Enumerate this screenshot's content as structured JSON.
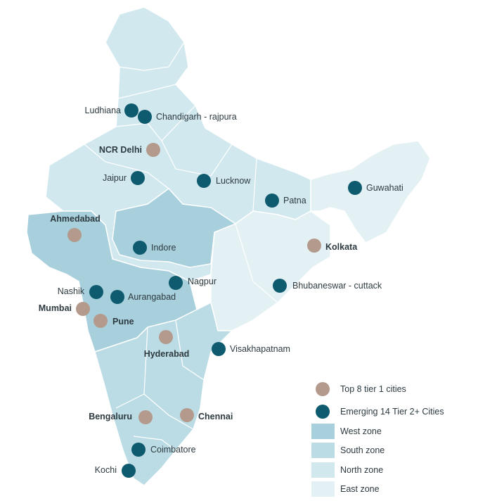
{
  "colors": {
    "tier1": "#b49a8c",
    "tier2": "#0e5a6e",
    "west_zone": "#a8d0dc",
    "south_zone": "#bcdce5",
    "north_zone": "#d2e8ef",
    "east_zone": "#e3f0f4",
    "border": "#ffffff"
  },
  "cities": [
    {
      "name": "Ludhiana",
      "tier": "tier2"
    },
    {
      "name": "Chandigarh - rajpura",
      "tier": "tier2"
    },
    {
      "name": "NCR Delhi",
      "tier": "tier1"
    },
    {
      "name": "Jaipur",
      "tier": "tier2"
    },
    {
      "name": "Lucknow",
      "tier": "tier2"
    },
    {
      "name": "Patna",
      "tier": "tier2"
    },
    {
      "name": "Guwahati",
      "tier": "tier2"
    },
    {
      "name": "Ahmedabad",
      "tier": "tier1"
    },
    {
      "name": "Indore",
      "tier": "tier2"
    },
    {
      "name": "Kolkata",
      "tier": "tier1"
    },
    {
      "name": "Nashik",
      "tier": "tier2"
    },
    {
      "name": "Aurangabad",
      "tier": "tier2"
    },
    {
      "name": "Nagpur",
      "tier": "tier2"
    },
    {
      "name": "Bhubaneswar - cuttack",
      "tier": "tier2"
    },
    {
      "name": "Mumbai",
      "tier": "tier1"
    },
    {
      "name": "Pune",
      "tier": "tier1"
    },
    {
      "name": "Hyderabad",
      "tier": "tier1"
    },
    {
      "name": "Visakhapatnam",
      "tier": "tier2"
    },
    {
      "name": "Bengaluru",
      "tier": "tier1"
    },
    {
      "name": "Chennai",
      "tier": "tier1"
    },
    {
      "name": "Coimbatore",
      "tier": "tier2"
    },
    {
      "name": "Kochi",
      "tier": "tier2"
    }
  ],
  "legend": {
    "tier1": "Top 8 tier 1 cities",
    "tier2": "Emerging 14 Tier 2+ Cities",
    "west": "West zone",
    "south": "South zone",
    "north": "North zone",
    "east": "East zone"
  }
}
